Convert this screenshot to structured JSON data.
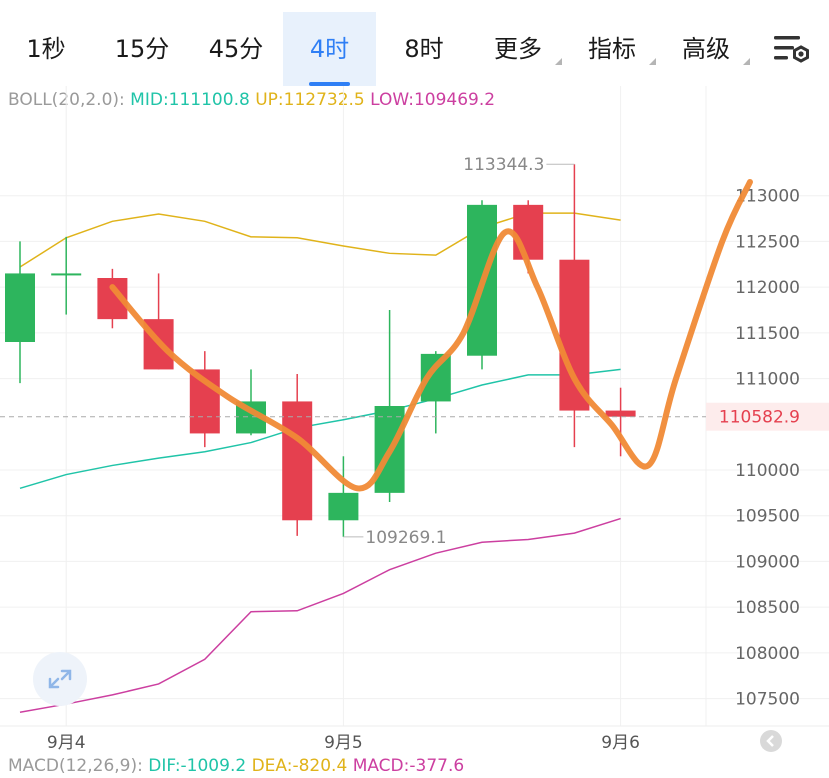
{
  "tabs": [
    {
      "label": "1秒",
      "active": false,
      "has_menu": false
    },
    {
      "label": "15分",
      "active": false,
      "has_menu": false
    },
    {
      "label": "45分",
      "active": false,
      "has_menu": false
    },
    {
      "label": "4时",
      "active": true,
      "has_menu": false
    },
    {
      "label": "8时",
      "active": false,
      "has_menu": false
    },
    {
      "label": "更多",
      "active": false,
      "has_menu": true
    },
    {
      "label": "指标",
      "active": false,
      "has_menu": true
    },
    {
      "label": "高级",
      "active": false,
      "has_menu": true
    }
  ],
  "settings_icon": "chart-settings-icon",
  "expand_icon": "expand-icon",
  "colors": {
    "up": "#2db55d",
    "down": "#e5404f",
    "mid": "#20c4a8",
    "upper": "#e0b31a",
    "lower": "#cc3fa0",
    "accent": "#2f7ff5",
    "annotation": "#f08a36",
    "price_tag_bg": "#fdecec",
    "price_tag_text": "#e5404f"
  },
  "boll": {
    "label": "BOLL(20,2.0):",
    "mid": "MID:111100.8",
    "up": "UP:112732.5",
    "low": "LOW:109469.2"
  },
  "macd": {
    "label": "MACD(12,26,9):",
    "dif": "DIF:-1009.2",
    "dea": "DEA:-820.4",
    "macd": "MACD:-377.6"
  },
  "chart_data": {
    "type": "candlestick",
    "y_ticks": [
      113000,
      112500,
      112000,
      111500,
      111000,
      110000,
      109500,
      109000,
      108500,
      108000,
      107500
    ],
    "ylim": [
      107200,
      114200
    ],
    "x_labels": [
      {
        "label": "9月4",
        "index": 1
      },
      {
        "label": "9月5",
        "index": 7
      },
      {
        "label": "9月6",
        "index": 13
      }
    ],
    "candles": [
      {
        "o": 111400,
        "h": 112500,
        "l": 110950,
        "c": 112150
      },
      {
        "o": 112150,
        "h": 112550,
        "l": 111700,
        "c": 112150
      },
      {
        "o": 112100,
        "h": 112200,
        "l": 111550,
        "c": 111650
      },
      {
        "o": 111650,
        "h": 112150,
        "l": 111100,
        "c": 111100
      },
      {
        "o": 111100,
        "h": 111300,
        "l": 110250,
        "c": 110400
      },
      {
        "o": 110400,
        "h": 111100,
        "l": 110380,
        "c": 110750
      },
      {
        "o": 110750,
        "h": 111050,
        "l": 109280,
        "c": 109450
      },
      {
        "o": 109450,
        "h": 110150,
        "l": 109269.1,
        "c": 109750
      },
      {
        "o": 109750,
        "h": 111750,
        "l": 109650,
        "c": 110700
      },
      {
        "o": 110750,
        "h": 111300,
        "l": 110400,
        "c": 111270
      },
      {
        "o": 111250,
        "h": 112950,
        "l": 111100,
        "c": 112900
      },
      {
        "o": 112900,
        "h": 112950,
        "l": 112150,
        "c": 112300
      },
      {
        "o": 112300,
        "h": 113344.3,
        "l": 110250,
        "c": 110650
      },
      {
        "o": 110650,
        "h": 110900,
        "l": 110150,
        "c": 110582.9
      }
    ],
    "bands": {
      "mid": [
        109800,
        109950,
        110050,
        110130,
        110200,
        110300,
        110460,
        110550,
        110650,
        110780,
        110930,
        111040,
        111040,
        111100.8
      ],
      "upper": [
        112220,
        112540,
        112720,
        112800,
        112720,
        112550,
        112540,
        112450,
        112370,
        112350,
        112650,
        112810,
        112810,
        112732.5
      ],
      "lower": [
        107350,
        107440,
        107540,
        107660,
        107930,
        108450,
        108460,
        108650,
        108910,
        109090,
        109210,
        109240,
        109310,
        109469.2
      ]
    },
    "max_label": "113344.3",
    "min_label": "109269.1",
    "current_price": "110582.9",
    "current_value": 110582.9,
    "annotation": [
      {
        "i": 2,
        "v": 112000
      },
      {
        "i": 3.2,
        "v": 111300
      },
      {
        "i": 4.5,
        "v": 110800
      },
      {
        "i": 6,
        "v": 110350
      },
      {
        "i": 7.3,
        "v": 109800
      },
      {
        "i": 8,
        "v": 110200
      },
      {
        "i": 8.8,
        "v": 111000
      },
      {
        "i": 9.6,
        "v": 111500
      },
      {
        "i": 10.5,
        "v": 112600
      },
      {
        "i": 11.2,
        "v": 112000
      },
      {
        "i": 12,
        "v": 111000
      },
      {
        "i": 12.8,
        "v": 110500
      },
      {
        "i": 13.6,
        "v": 110050
      },
      {
        "i": 14.2,
        "v": 111000
      },
      {
        "i": 15.2,
        "v": 112500
      },
      {
        "i": 15.8,
        "v": 113150
      }
    ]
  }
}
